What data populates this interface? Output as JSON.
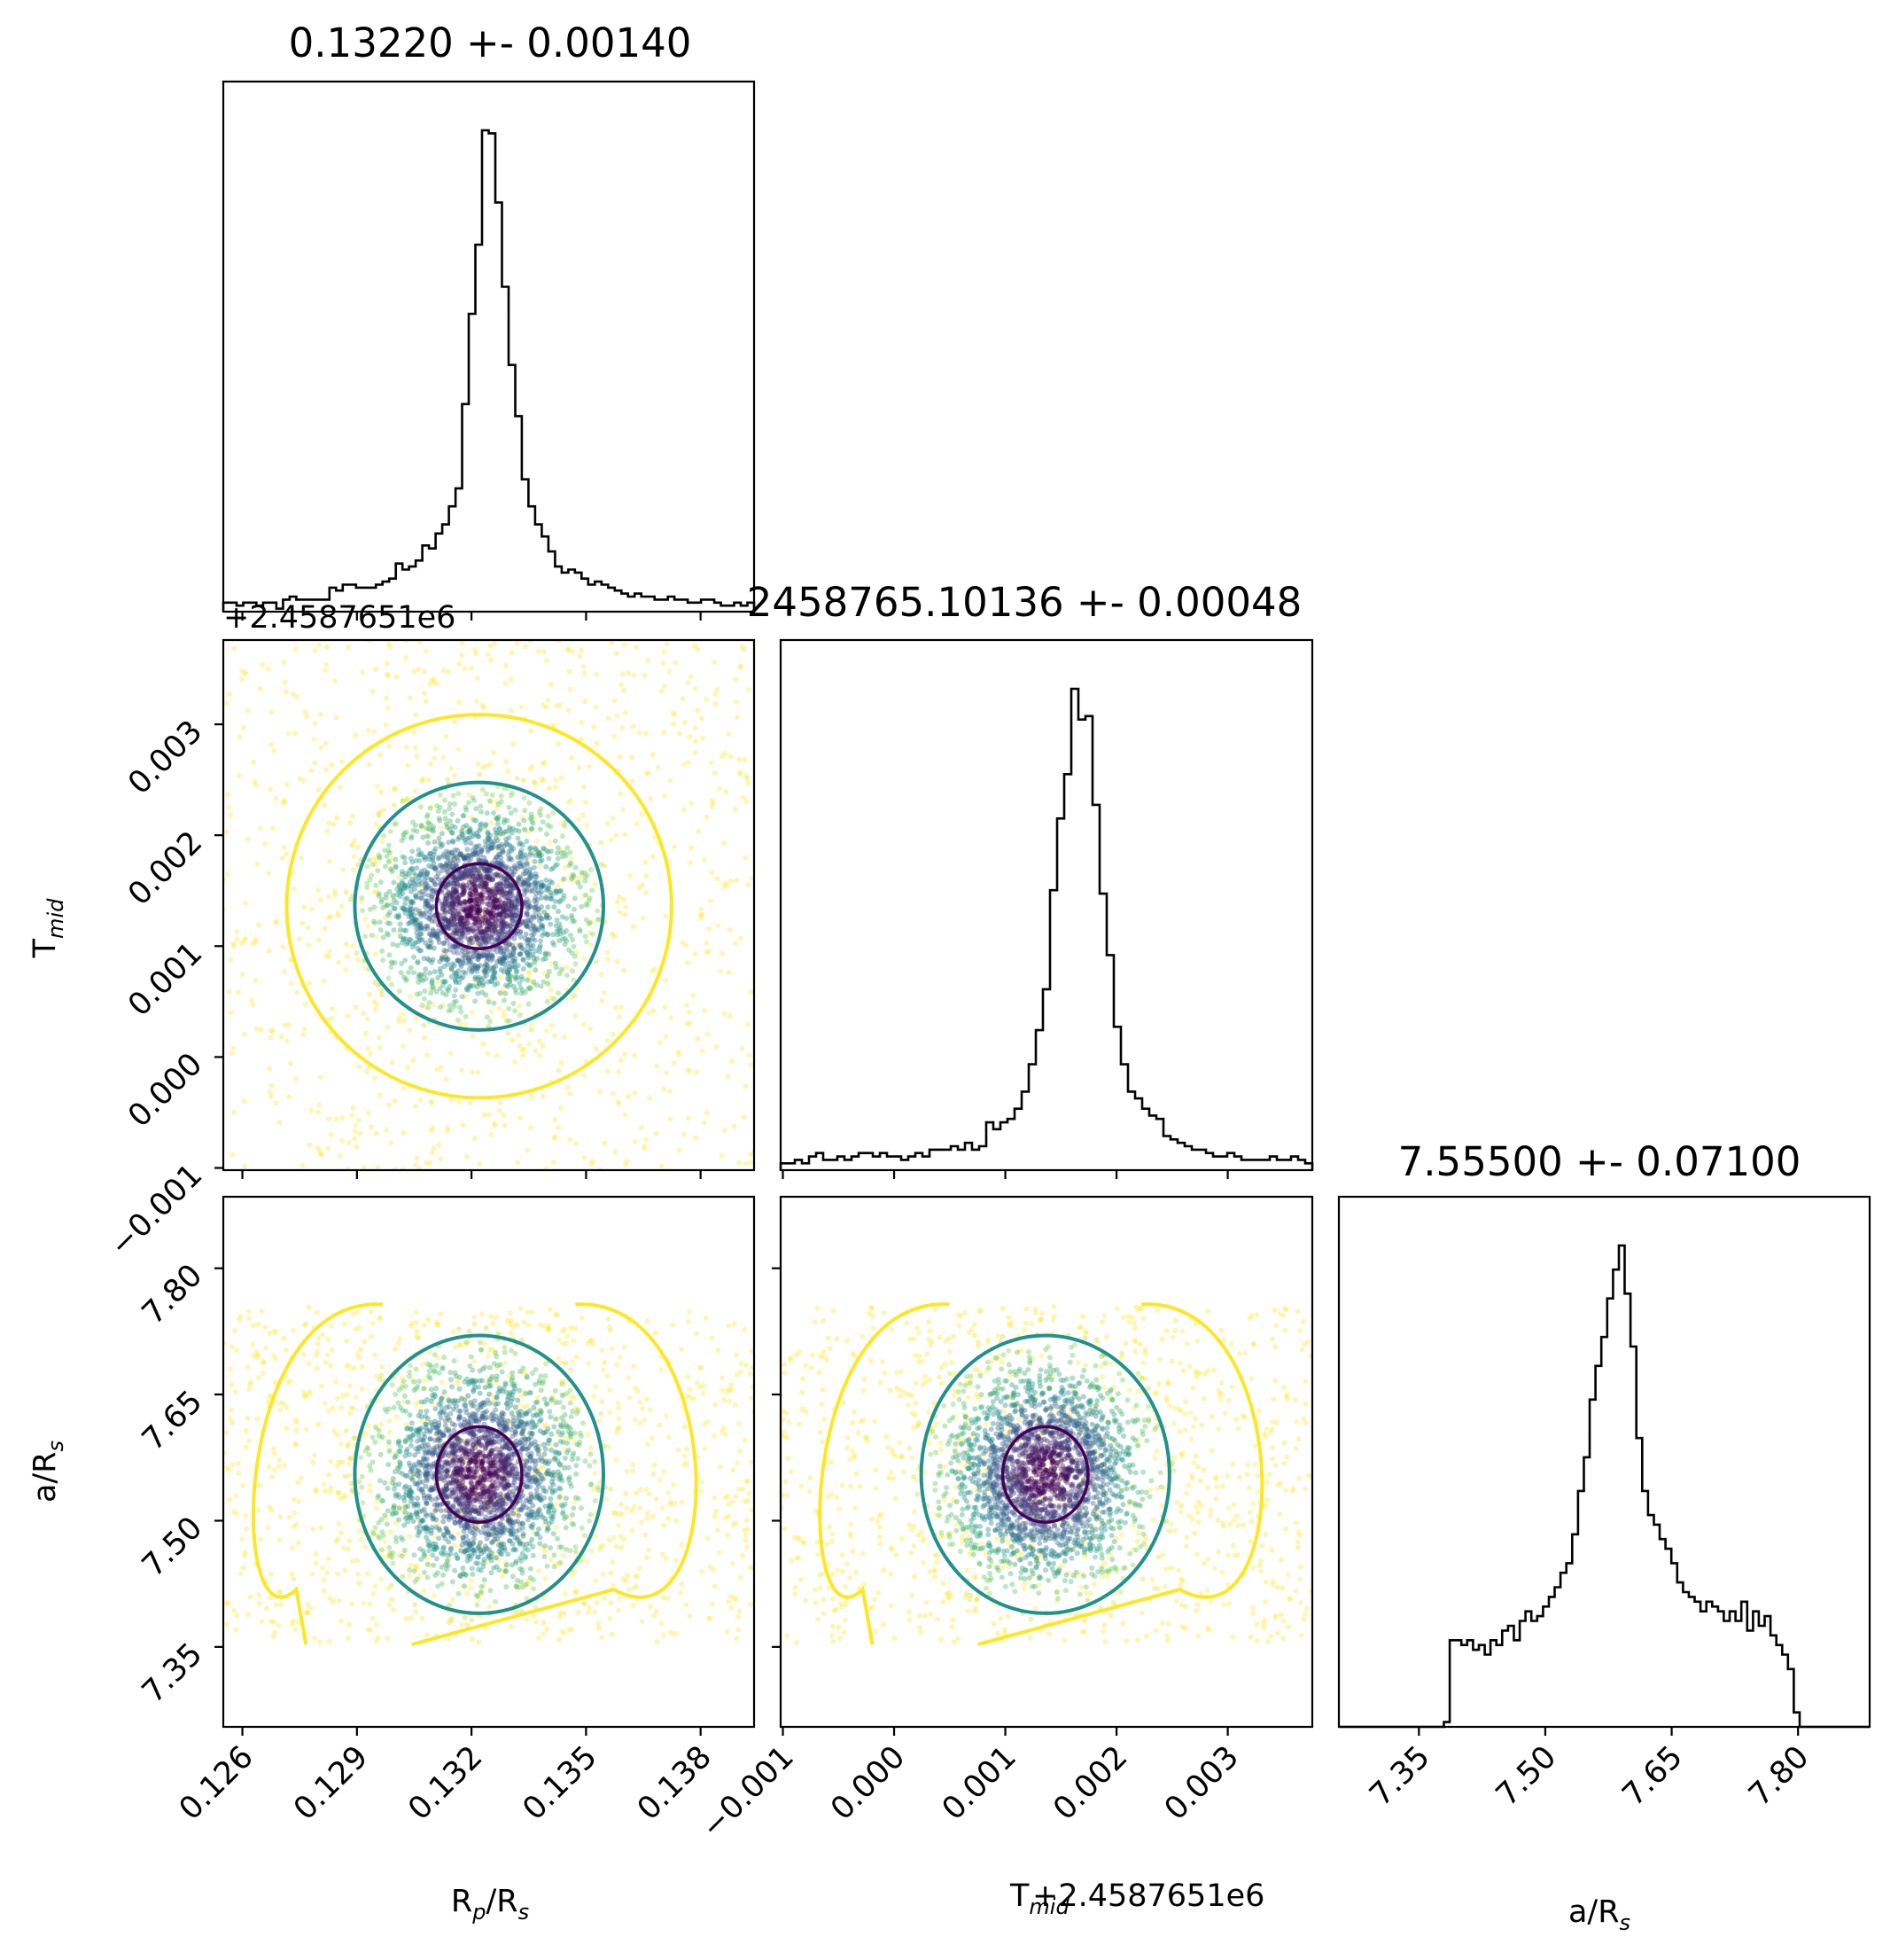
{
  "chart_data": {
    "type": "corner",
    "parameters": [
      {
        "key": "rp",
        "label_main": "R",
        "label_sub": "p",
        "label_mid": "/R",
        "label_sub2": "s",
        "title": "0.13220 +- 0.00140",
        "median": 0.1322,
        "sigma": 0.0014,
        "range": [
          0.1255,
          0.1394
        ],
        "ticks": [
          0.126,
          0.129,
          0.132,
          0.135,
          0.138
        ],
        "tick_labels": [
          "0.126",
          "0.129",
          "0.132",
          "0.135",
          "0.138"
        ]
      },
      {
        "key": "tmid",
        "label_main": "T",
        "label_sub": "mid",
        "title": "2458765.10136 +- 0.00048",
        "offset_text": "+2.4587651e6",
        "median": 0.00136,
        "sigma": 0.00048,
        "range": [
          -0.00102,
          0.00376
        ],
        "ticks": [
          -0.001,
          0.0,
          0.001,
          0.002,
          0.003
        ],
        "tick_labels": [
          "−0.001",
          "0.000",
          "0.001",
          "0.002",
          "0.003"
        ]
      },
      {
        "key": "ars",
        "label_main": "a/R",
        "label_sub": "s",
        "title": "7.55500 +- 0.07100",
        "median": 7.555,
        "sigma": 0.071,
        "range": [
          7.255,
          7.885
        ],
        "ticks": [
          7.35,
          7.5,
          7.65,
          7.8
        ],
        "tick_labels": [
          "7.35",
          "7.50",
          "7.65",
          "7.80"
        ]
      }
    ],
    "xlabel_tmid_combined": "T_mid+2.4587651e6",
    "contour_colors": [
      "#440154",
      "#21918c",
      "#fde725"
    ],
    "scatter_colormap": "viridis",
    "histograms": [
      {
        "param": "rp",
        "bin_edges_range": [
          0.1255,
          0.1394
        ],
        "counts": [
          3,
          3,
          2,
          3,
          3,
          2,
          3,
          3,
          1,
          4,
          5,
          4,
          4,
          4,
          4,
          4,
          8,
          7,
          9,
          9,
          8,
          8,
          8,
          9,
          10,
          11,
          16,
          14,
          15,
          17,
          22,
          21,
          26,
          29,
          35,
          41,
          69,
          99,
          122,
          160,
          159,
          136,
          108,
          82,
          65,
          44,
          35,
          29,
          25,
          20,
          15,
          13,
          14,
          13,
          11,
          9,
          10,
          9,
          8,
          7,
          6,
          5,
          6,
          5,
          5,
          4,
          4,
          5,
          4,
          4,
          3,
          3,
          4,
          4,
          3,
          2,
          2,
          3,
          2,
          3
        ]
      },
      {
        "param": "tmid",
        "bin_edges_range": [
          -0.00102,
          0.00376
        ],
        "counts": [
          2,
          2,
          3,
          2,
          4,
          5,
          3,
          3,
          4,
          3,
          4,
          5,
          5,
          4,
          5,
          4,
          4,
          3,
          4,
          5,
          4,
          6,
          6,
          6,
          7,
          6,
          8,
          6,
          7,
          14,
          12,
          14,
          15,
          18,
          23,
          31,
          41,
          53,
          82,
          103,
          116,
          141,
          132,
          133,
          107,
          81,
          63,
          42,
          31,
          23,
          21,
          18,
          16,
          15,
          10,
          9,
          8,
          7,
          6,
          6,
          5,
          4,
          4,
          5,
          4,
          3,
          3,
          3,
          3,
          4,
          3,
          3,
          4,
          3,
          2
        ]
      },
      {
        "param": "ars",
        "bin_edges_range": [
          7.255,
          7.885
        ],
        "counts": [
          0,
          0,
          0,
          0,
          0,
          0,
          0,
          0,
          0,
          0,
          0,
          0,
          0,
          0,
          0,
          0,
          0,
          0,
          1,
          18,
          18,
          17,
          18,
          16,
          17,
          15,
          18,
          17,
          20,
          21,
          18,
          22,
          24,
          22,
          23,
          25,
          27,
          29,
          32,
          34,
          40,
          49,
          56,
          68,
          75,
          81,
          89,
          95,
          100,
          90,
          79,
          60,
          49,
          44,
          42,
          39,
          37,
          34,
          30,
          28,
          27,
          26,
          24,
          26,
          25,
          24,
          22,
          24,
          22,
          26,
          20,
          24,
          21,
          23,
          19,
          17,
          15,
          12,
          3,
          0,
          0,
          0,
          0,
          0,
          0,
          0,
          0,
          0,
          0,
          0,
          0
        ]
      }
    ],
    "contour_levels_sigma": [
      0.5,
      1.5,
      3.0
    ]
  }
}
